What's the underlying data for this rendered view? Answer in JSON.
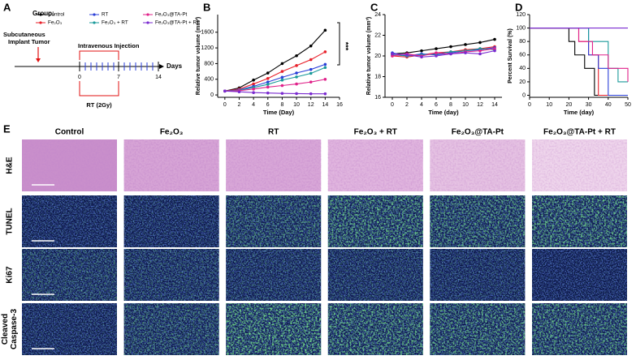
{
  "panel_a": {
    "label": "A",
    "group_title": "Group:",
    "implant": [
      "Subcutaneous",
      "Implant Tumor"
    ],
    "injection": "Intravenous Injection",
    "days": "Days",
    "ticks": [
      0,
      7,
      14
    ],
    "rt": "RT (2Gy)"
  },
  "chart_data": [
    {
      "type": "line",
      "panel": "B",
      "x_label": "Time (Day)",
      "y_label": "Relative tumor volume (mm³)",
      "annotation": "***",
      "x": [
        0,
        2,
        4,
        6,
        8,
        10,
        12,
        14
      ],
      "xlim": [
        -1,
        16
      ],
      "xticks": [
        0,
        2,
        4,
        6,
        8,
        10,
        12,
        14,
        16
      ],
      "ylim": [
        -60,
        2050
      ],
      "yticks": [
        0,
        400,
        800,
        1200,
        1600
      ],
      "series": [
        {
          "name": "Control",
          "color": "#000000",
          "values": [
            100,
            180,
            380,
            560,
            800,
            1000,
            1250,
            1650
          ]
        },
        {
          "name": "Fe₂O₃",
          "color": "#e8202a",
          "values": [
            100,
            150,
            280,
            420,
            600,
            750,
            900,
            1100
          ]
        },
        {
          "name": "RT",
          "color": "#2a3fd8",
          "values": [
            100,
            130,
            220,
            330,
            450,
            560,
            650,
            780
          ]
        },
        {
          "name": "Fe₂O₃ + RT",
          "color": "#1a9a9a",
          "values": [
            100,
            120,
            190,
            270,
            380,
            460,
            550,
            700
          ]
        },
        {
          "name": "Fe₂O₃@TA-Pt",
          "color": "#e0218a",
          "values": [
            100,
            110,
            150,
            200,
            240,
            280,
            330,
            400
          ]
        },
        {
          "name": "Fe₂O₃@TA-Pt + RT",
          "color": "#7a2ad0",
          "values": [
            100,
            80,
            60,
            50,
            40,
            35,
            30,
            30
          ]
        }
      ]
    },
    {
      "type": "line",
      "panel": "C",
      "x_label": "Time (day)",
      "y_label": "Relative tumor volume (mm³)",
      "x": [
        0,
        2,
        4,
        6,
        8,
        10,
        12,
        14
      ],
      "xlim": [
        -1,
        15
      ],
      "xticks": [
        0,
        2,
        4,
        6,
        8,
        10,
        12,
        14
      ],
      "ylim": [
        16,
        24
      ],
      "yticks": [
        16,
        18,
        20,
        22,
        24
      ],
      "series": [
        {
          "name": "Control",
          "color": "#000000",
          "values": [
            20.2,
            20.3,
            20.5,
            20.7,
            20.9,
            21.1,
            21.3,
            21.6
          ]
        },
        {
          "name": "Fe₂O₃",
          "color": "#e8202a",
          "values": [
            20.0,
            19.9,
            20.1,
            20.3,
            20.4,
            20.6,
            20.7,
            20.9
          ]
        },
        {
          "name": "RT",
          "color": "#2a3fd8",
          "values": [
            20.3,
            20.0,
            20.2,
            20.1,
            20.3,
            20.5,
            20.6,
            20.8
          ]
        },
        {
          "name": "Fe₂O₃ + RT",
          "color": "#1a9a9a",
          "values": [
            20.1,
            20.0,
            20.1,
            20.2,
            20.4,
            20.5,
            20.7,
            20.6
          ]
        },
        {
          "name": "Fe₂O₃@TA-Pt",
          "color": "#e0218a",
          "values": [
            20.0,
            20.2,
            20.0,
            20.3,
            20.2,
            20.4,
            20.5,
            20.7
          ]
        },
        {
          "name": "Fe₂O₃@TA-Pt + RT",
          "color": "#7a2ad0",
          "values": [
            20.2,
            20.1,
            19.9,
            20.0,
            20.2,
            20.3,
            20.2,
            20.5
          ]
        }
      ]
    },
    {
      "type": "step",
      "panel": "D",
      "x_label": "Time (day)",
      "y_label": "Percent Survival (%)",
      "xlim": [
        0,
        50
      ],
      "xticks": [
        0,
        10,
        20,
        30,
        40,
        50
      ],
      "ylim": [
        -3,
        120
      ],
      "yticks": [
        0,
        20,
        40,
        60,
        80,
        100,
        120
      ],
      "series": [
        {
          "name": "Control",
          "color": "#000000",
          "x": [
            0,
            20,
            23,
            28,
            33,
            50
          ],
          "values": [
            100,
            80,
            60,
            40,
            0,
            0
          ]
        },
        {
          "name": "Fe₂O₃",
          "color": "#e8202a",
          "x": [
            0,
            25,
            30,
            35,
            50
          ],
          "values": [
            100,
            80,
            60,
            0,
            0
          ]
        },
        {
          "name": "RT",
          "color": "#2a3fd8",
          "x": [
            0,
            30,
            35,
            40,
            50
          ],
          "values": [
            100,
            60,
            40,
            0,
            0
          ]
        },
        {
          "name": "Fe₂O₃ + RT",
          "color": "#1a9a9a",
          "x": [
            0,
            30,
            40,
            45,
            50
          ],
          "values": [
            100,
            80,
            40,
            20,
            20
          ]
        },
        {
          "name": "Fe₂O₃@TA-Pt",
          "color": "#e0218a",
          "x": [
            0,
            25,
            32,
            40,
            50
          ],
          "values": [
            100,
            80,
            60,
            40,
            20
          ]
        },
        {
          "name": "Fe₂O₃@TA-Pt + RT",
          "color": "#7a2ad0",
          "x": [
            0,
            50
          ],
          "values": [
            100,
            100
          ]
        }
      ]
    }
  ],
  "panel_e": {
    "label": "E",
    "columns": [
      "Control",
      "Fe₂O₃",
      "RT",
      "Fe₂O₃ + RT",
      "Fe₂O₃@TA-Pt",
      "Fe₂O₃@TA-Pt + RT"
    ],
    "rows": [
      [
        "H&E"
      ],
      [
        "TUNEL"
      ],
      [
        "Ki67"
      ],
      [
        "Cleaved",
        "Caspase-3"
      ]
    ]
  }
}
